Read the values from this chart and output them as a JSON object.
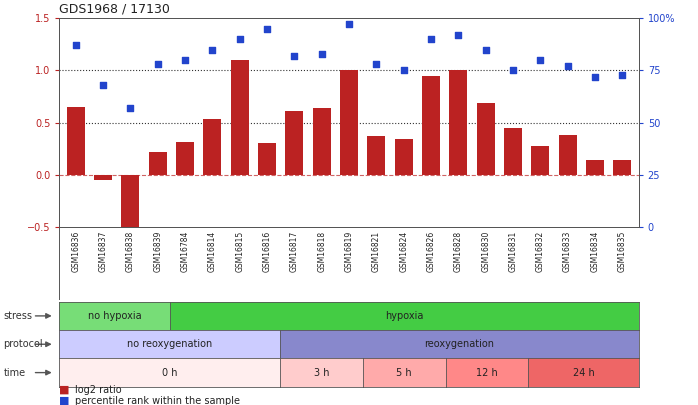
{
  "title": "GDS1968 / 17130",
  "samples": [
    "GSM16836",
    "GSM16837",
    "GSM16838",
    "GSM16839",
    "GSM16784",
    "GSM16814",
    "GSM16815",
    "GSM16816",
    "GSM16817",
    "GSM16818",
    "GSM16819",
    "GSM16821",
    "GSM16824",
    "GSM16826",
    "GSM16828",
    "GSM16830",
    "GSM16831",
    "GSM16832",
    "GSM16833",
    "GSM16834",
    "GSM16835"
  ],
  "log2_ratio": [
    0.65,
    -0.05,
    -0.58,
    0.22,
    0.31,
    0.53,
    1.1,
    0.3,
    0.61,
    0.64,
    1.0,
    0.37,
    0.34,
    0.95,
    1.0,
    0.69,
    0.45,
    0.27,
    0.38,
    0.14,
    0.14
  ],
  "percentile": [
    87,
    68,
    57,
    78,
    80,
    85,
    90,
    95,
    82,
    83,
    97,
    78,
    75,
    90,
    92,
    85,
    75,
    80,
    77,
    72,
    73
  ],
  "bar_color": "#bb2222",
  "dot_color": "#2244cc",
  "ylim_left": [
    -0.5,
    1.5
  ],
  "ylim_right": [
    0,
    100
  ],
  "yticks_left": [
    -0.5,
    0.0,
    0.5,
    1.0,
    1.5
  ],
  "yticks_right": [
    0,
    25,
    50,
    75,
    100
  ],
  "yticklabels_right": [
    "0",
    "25",
    "50",
    "75",
    "100%"
  ],
  "stress_rows": [
    {
      "label": "no hypoxia",
      "start": 0,
      "end": 4,
      "color": "#77dd77"
    },
    {
      "label": "hypoxia",
      "start": 4,
      "end": 21,
      "color": "#44cc44"
    }
  ],
  "protocol_rows": [
    {
      "label": "no reoxygenation",
      "start": 0,
      "end": 8,
      "color": "#ccccff"
    },
    {
      "label": "reoxygenation",
      "start": 8,
      "end": 21,
      "color": "#8888cc"
    }
  ],
  "time_rows": [
    {
      "label": "0 h",
      "start": 0,
      "end": 8,
      "color": "#ffeeee"
    },
    {
      "label": "3 h",
      "start": 8,
      "end": 11,
      "color": "#ffcccc"
    },
    {
      "label": "5 h",
      "start": 11,
      "end": 14,
      "color": "#ffaaaa"
    },
    {
      "label": "12 h",
      "start": 14,
      "end": 17,
      "color": "#ff8888"
    },
    {
      "label": "24 h",
      "start": 17,
      "end": 21,
      "color": "#ee6666"
    }
  ],
  "n_samples": 21,
  "bg_color": "#ffffff",
  "xticklabel_bg": "#dddddd",
  "legend_bar_label": "log2 ratio",
  "legend_dot_label": "percentile rank within the sample"
}
